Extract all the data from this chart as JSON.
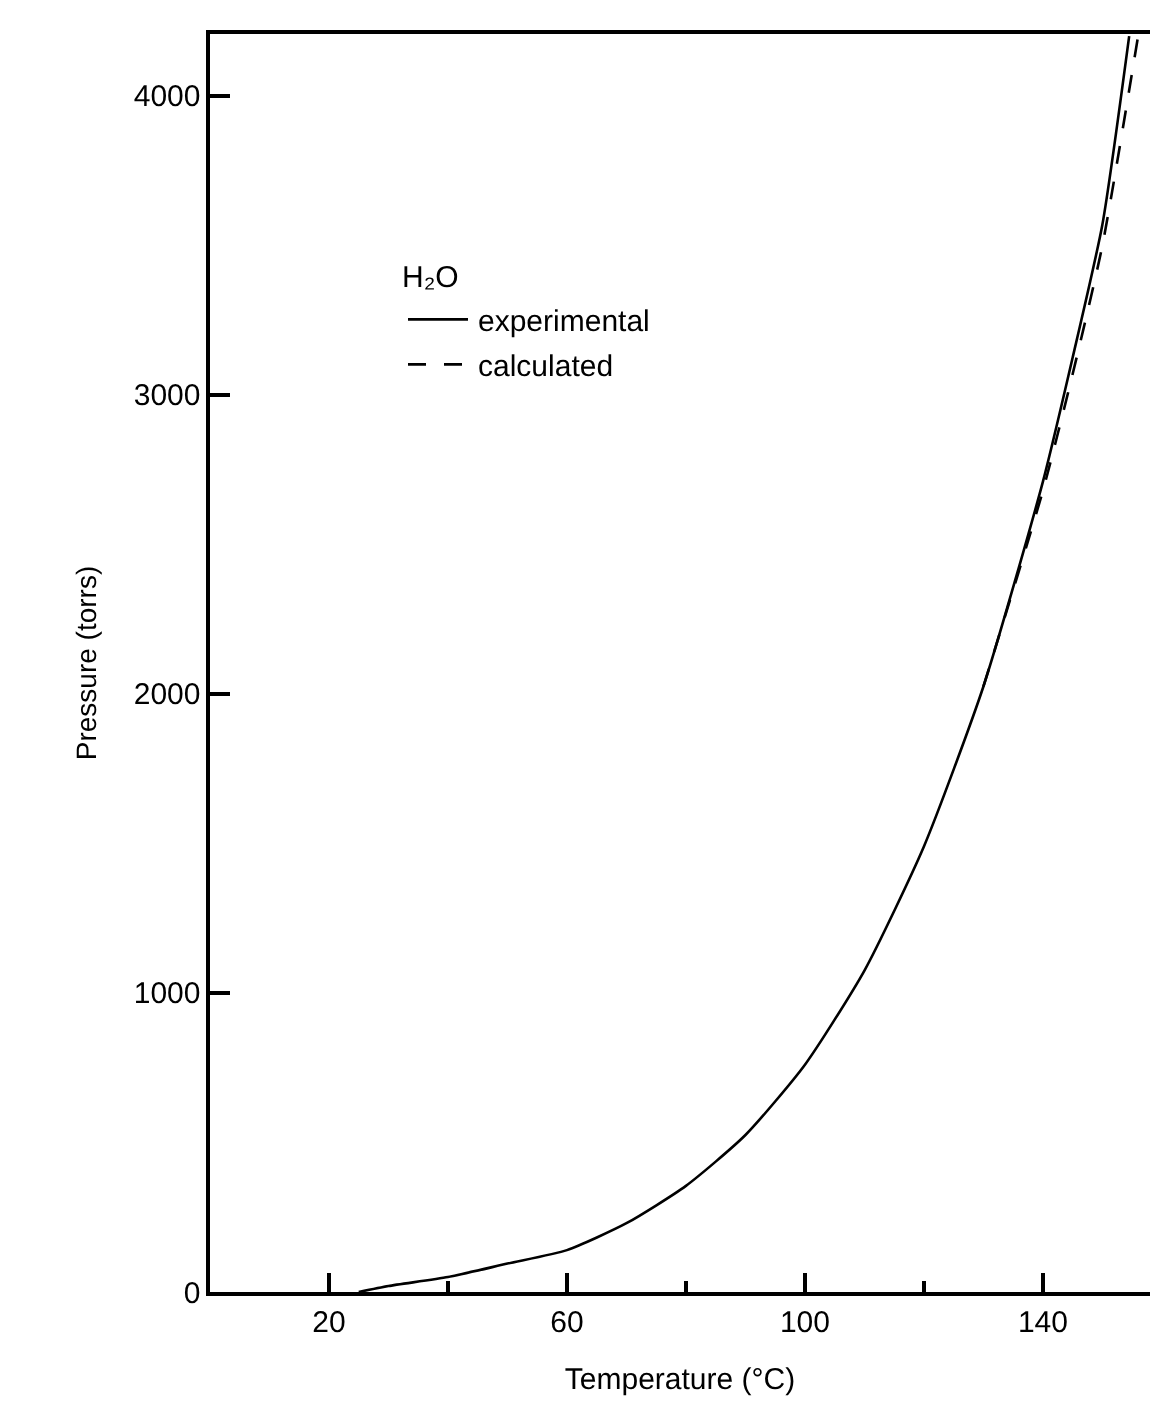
{
  "chart_data": {
    "type": "line",
    "xlabel": "Temperature (°C)",
    "ylabel": "Pressure (torrs)",
    "legend_title": "H₂O",
    "xlim": [
      0,
      158
    ],
    "xticks": [
      20,
      {
        "value": 40,
        "label": null
      },
      60,
      {
        "value": 80,
        "label": null
      },
      100,
      {
        "value": 120,
        "label": null
      },
      140
    ],
    "ylim": [
      0,
      4207
    ],
    "yticks": [
      0,
      1000,
      2000,
      3000,
      4000
    ],
    "legend": "top left",
    "series": [
      {
        "name": "experimental",
        "color": "#000000",
        "line_style": "solid",
        "x": [
          25,
          30,
          40,
          50,
          60,
          70,
          80,
          90,
          100,
          110,
          120,
          130,
          140,
          145,
          150,
          154.5
        ],
        "values": [
          0,
          20,
          50,
          95,
          140,
          230,
          355,
          525,
          760,
          1075,
          1490,
          2025,
          2710,
          3125,
          3570,
          4200
        ]
      },
      {
        "name": "calculated",
        "color": "#000000",
        "line_style": "dashed",
        "x": [
          130,
          140,
          145,
          150,
          156
        ],
        "values": [
          2025,
          2680,
          3070,
          3500,
          4200
        ]
      }
    ]
  }
}
